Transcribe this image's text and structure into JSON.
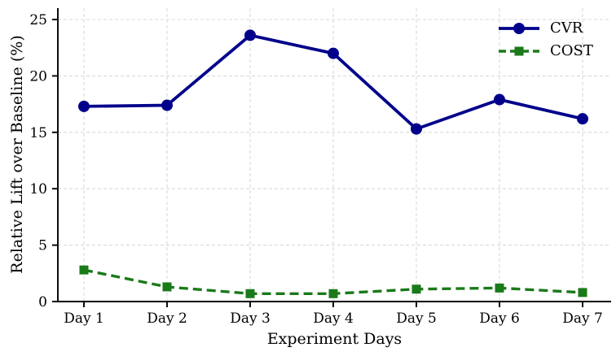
{
  "chart_data": {
    "type": "line",
    "title": "",
    "xlabel": "Experiment Days",
    "ylabel": "Relative Lift over Baseline (%)",
    "categories": [
      "Day 1",
      "Day 2",
      "Day 3",
      "Day 4",
      "Day 5",
      "Day 6",
      "Day 7"
    ],
    "series": [
      {
        "name": "CVR",
        "values": [
          17.3,
          17.4,
          23.6,
          22.0,
          15.3,
          17.9,
          16.2
        ],
        "color": "#00008B",
        "line_style": "solid",
        "marker": "circle"
      },
      {
        "name": "COST",
        "values": [
          2.8,
          1.3,
          0.7,
          0.7,
          1.1,
          1.2,
          0.8
        ],
        "color": "#1A7A1A",
        "line_style": "dashed",
        "marker": "square"
      }
    ],
    "y_ticks": [
      0,
      5,
      10,
      15,
      20,
      25
    ],
    "ylim": [
      0,
      26
    ],
    "grid": true,
    "grid_color": "#d9d9d9",
    "axis_color": "#000000",
    "legend_position": "upper right",
    "background": "#ffffff"
  }
}
